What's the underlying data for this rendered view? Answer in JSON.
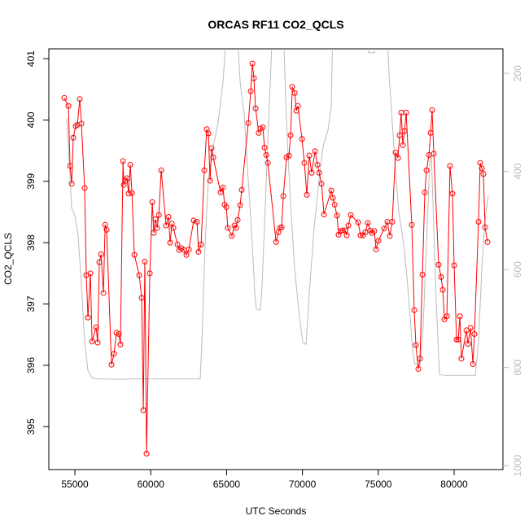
{
  "chart_data": {
    "type": "line",
    "title": "ORCAS RF11 CO2_QCLS",
    "x_label": "UTC Seconds",
    "y_label": "CO2_QCLS",
    "xlim": [
      53280,
      83220
    ],
    "xticks": [
      55000,
      60000,
      65000,
      70000,
      75000,
      80000
    ],
    "ylim": [
      394.3,
      401.16
    ],
    "yticks": [
      395,
      396,
      397,
      398,
      399,
      400,
      401
    ],
    "y2lim": [
      1008,
      150
    ],
    "y2ticks": [
      200,
      400,
      600,
      800,
      1000
    ],
    "series": [
      {
        "color": "#bbbbbb",
        "axis": "y2",
        "x": [
          54464,
          54624,
          54785,
          55000,
          55215,
          55429,
          55644,
          55858,
          56127,
          56502,
          58112,
          58648,
          60794,
          63262,
          63370,
          63584,
          63799,
          64120,
          64442,
          64764,
          65033,
          65676,
          65891,
          66159,
          66427,
          66696,
          66857,
          66964,
          67232,
          67340,
          67554,
          67769,
          68037,
          68734,
          68949,
          69217,
          69486,
          69807,
          70022,
          70237,
          70451,
          70773,
          71095,
          71363,
          71685,
          71900,
          72007,
          74260,
          74367,
          74742,
          74850,
          75548,
          75709,
          75923,
          76138,
          76353,
          76675,
          76889,
          77104,
          77265,
          77426,
          77748,
          77962,
          78177,
          78391,
          78499,
          78660,
          78821,
          79035,
          79357,
          81396,
          81610,
          81825,
          82040,
          82254
        ],
        "values": [
          291,
          383,
          474,
          490,
          532,
          632,
          748,
          806,
          821,
          823,
          824,
          823,
          823,
          823,
          748,
          549,
          416,
          349,
          300,
          217,
          100,
          100,
          217,
          283,
          416,
          549,
          648,
          681,
          683,
          631,
          466,
          300,
          100,
          100,
          300,
          466,
          598,
          698,
          748,
          753,
          648,
          515,
          416,
          349,
          316,
          266,
          100,
          100,
          158,
          158,
          100,
          100,
          200,
          300,
          399,
          482,
          549,
          615,
          698,
          764,
          793,
          795,
          715,
          549,
          383,
          366,
          515,
          665,
          814,
          816,
          816,
          748,
          598,
          499,
          449
        ]
      },
      {
        "color": "#ff0000",
        "markers": true,
        "x": [
          54300,
          54570,
          54680,
          54790,
          54890,
          55050,
          55160,
          55320,
          55430,
          55640,
          55750,
          55860,
          56020,
          56130,
          56400,
          56500,
          56610,
          56720,
          56880,
          56990,
          57090,
          57410,
          57580,
          57740,
          57900,
          58000,
          58170,
          58220,
          58330,
          58430,
          58540,
          58650,
          58760,
          58920,
          59240,
          59400,
          59510,
          59610,
          59720,
          59940,
          60100,
          60200,
          60310,
          60420,
          60530,
          60690,
          61010,
          61170,
          61280,
          61390,
          61490,
          61760,
          61870,
          62030,
          62190,
          62350,
          62510,
          62830,
          63050,
          63150,
          63320,
          63530,
          63690,
          63800,
          63910,
          64010,
          64120,
          64600,
          64760,
          64870,
          64980,
          65080,
          65350,
          65520,
          65620,
          65730,
          65890,
          66000,
          66430,
          66590,
          66700,
          66800,
          66910,
          67120,
          67230,
          67390,
          67500,
          67610,
          67720,
          68260,
          68420,
          68520,
          68630,
          68740,
          68950,
          69110,
          69220,
          69330,
          69490,
          69600,
          69700,
          69970,
          70130,
          70290,
          70450,
          70610,
          70830,
          70990,
          71100,
          71260,
          71420,
          71900,
          72010,
          72120,
          72280,
          72380,
          72540,
          72650,
          72810,
          72920,
          73030,
          73190,
          73670,
          73830,
          73990,
          74150,
          74310,
          74470,
          74580,
          74740,
          74850,
          75010,
          75390,
          75600,
          75760,
          75920,
          76140,
          76300,
          76410,
          76510,
          76620,
          76730,
          76840,
          77210,
          77370,
          77480,
          77640,
          77750,
          77910,
          78070,
          78180,
          78340,
          78450,
          78550,
          78660,
          78980,
          79140,
          79250,
          79360,
          79520,
          79730,
          79890,
          80000,
          80160,
          80270,
          80380,
          80480,
          80810,
          80910,
          81080,
          81240,
          81340,
          81610,
          81720,
          81830,
          81930,
          82040,
          82200
        ],
        "values": [
          400.36,
          400.23,
          399.25,
          398.96,
          399.71,
          399.9,
          399.92,
          400.34,
          399.94,
          398.89,
          397.47,
          396.78,
          397.5,
          396.39,
          396.62,
          396.37,
          397.68,
          397.81,
          397.18,
          398.29,
          398.21,
          396.01,
          396.19,
          396.53,
          396.51,
          396.34,
          399.33,
          398.94,
          399.01,
          399.05,
          398.8,
          399.27,
          398.81,
          397.8,
          397.47,
          397.1,
          395.27,
          397.69,
          394.56,
          397.5,
          398.66,
          398.16,
          398.38,
          398.24,
          398.45,
          399.18,
          398.28,
          398.42,
          398.0,
          398.31,
          398.24,
          397.97,
          397.88,
          397.91,
          397.88,
          397.8,
          397.89,
          398.36,
          398.34,
          397.85,
          397.97,
          399.18,
          399.85,
          399.78,
          399.01,
          399.54,
          399.39,
          398.82,
          398.9,
          398.62,
          398.58,
          398.24,
          398.11,
          398.28,
          398.24,
          398.37,
          398.61,
          398.86,
          399.95,
          400.47,
          400.92,
          400.68,
          400.19,
          399.79,
          399.86,
          399.88,
          399.55,
          399.43,
          399.3,
          398.01,
          398.17,
          398.24,
          398.25,
          398.76,
          399.39,
          399.42,
          399.75,
          400.54,
          400.44,
          400.15,
          400.23,
          399.69,
          399.3,
          398.78,
          399.42,
          399.14,
          399.49,
          399.27,
          399.14,
          398.96,
          398.46,
          398.85,
          398.73,
          398.62,
          398.44,
          398.13,
          398.19,
          398.2,
          398.2,
          398.12,
          398.28,
          398.45,
          398.33,
          398.12,
          398.12,
          398.17,
          398.32,
          398.2,
          398.16,
          398.19,
          397.89,
          398.03,
          398.23,
          398.34,
          398.11,
          398.34,
          399.47,
          399.38,
          399.75,
          400.12,
          399.59,
          399.82,
          400.12,
          398.29,
          396.9,
          396.33,
          395.94,
          396.11,
          397.48,
          398.82,
          399.18,
          399.43,
          399.79,
          400.16,
          399.45,
          397.64,
          397.44,
          397.23,
          396.75,
          396.8,
          399.25,
          398.8,
          397.63,
          396.42,
          396.42,
          396.8,
          396.11,
          396.57,
          396.35,
          396.61,
          396.02,
          396.51,
          398.34,
          399.3,
          399.21,
          399.12,
          398.25,
          398.01
        ]
      }
    ]
  }
}
